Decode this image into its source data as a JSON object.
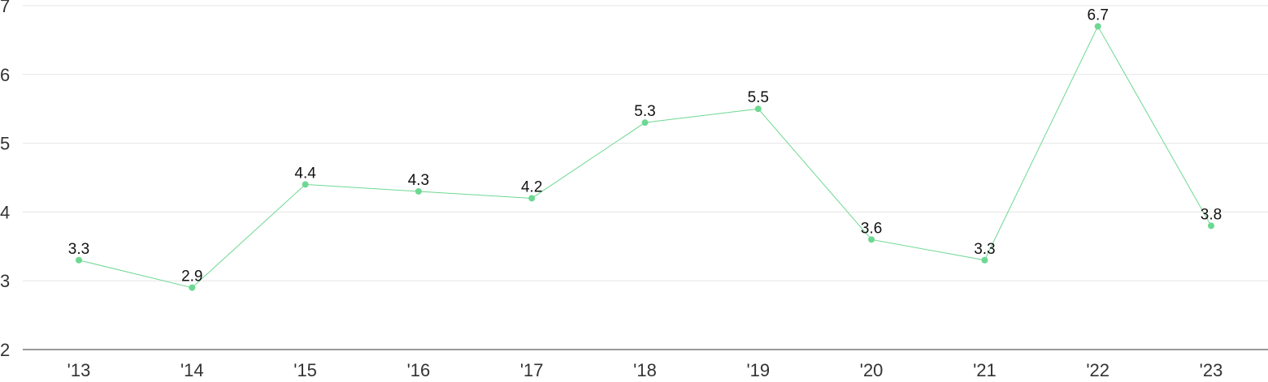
{
  "chart_data": {
    "type": "line",
    "categories": [
      "'13",
      "'14",
      "'15",
      "'16",
      "'17",
      "'18",
      "'19",
      "'20",
      "'21",
      "'22",
      "'23"
    ],
    "series": [
      {
        "values": [
          3.3,
          2.9,
          4.4,
          4.3,
          4.2,
          5.3,
          5.5,
          3.6,
          3.3,
          6.7,
          3.8
        ],
        "labels": [
          "3.3",
          "2.9",
          "4.4",
          "4.3",
          "4.2",
          "5.3",
          "5.5",
          "3.6",
          "3.3",
          "6.7",
          "3.8"
        ],
        "color": "#6dd892"
      }
    ],
    "title": "",
    "xlabel": "",
    "ylabel": "",
    "ylim": [
      2,
      7
    ],
    "yticks": [
      "2",
      "3",
      "4",
      "5",
      "6",
      "7"
    ],
    "grid": true,
    "legend": "none"
  }
}
